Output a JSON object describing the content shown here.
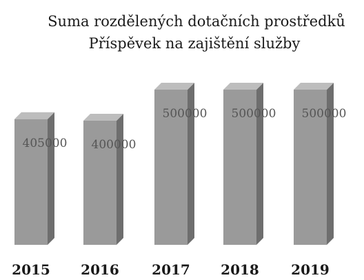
{
  "chart_data": {
    "type": "bar3d",
    "title": [
      "Suma rozdělených dotačních prostředků",
      "Příspěvek na zajištění služby"
    ],
    "categories": [
      "2015",
      "2016",
      "2017",
      "2018",
      "2019"
    ],
    "values": [
      405000,
      400000,
      500000,
      500000,
      500000
    ],
    "color": "#9a9a9a"
  }
}
